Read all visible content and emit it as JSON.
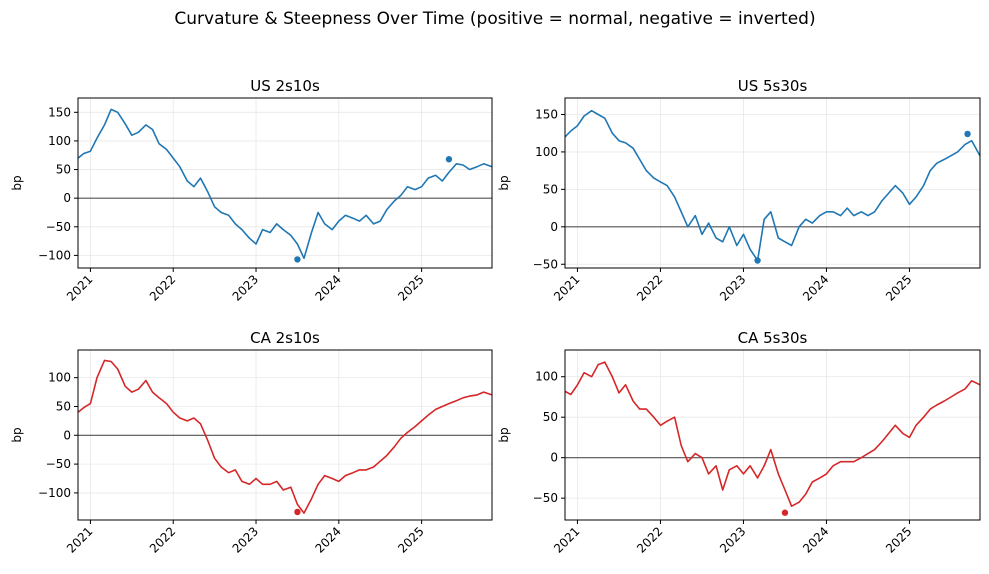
{
  "figure": {
    "title": "Curvature & Steepness Over Time (positive = normal, negative = inverted)"
  },
  "colors": {
    "us": "#1f77b4",
    "ca": "#d62728",
    "zero_line": "#555555",
    "grid": "#e8e8e8"
  },
  "chart_data": [
    {
      "type": "line",
      "title": "US 2s10s",
      "ylabel": "bp",
      "xlabel": "",
      "x_ticks": [
        "2021",
        "2022",
        "2023",
        "2024",
        "2025"
      ],
      "y_ticks": [
        150,
        100,
        50,
        0,
        -50,
        -100
      ],
      "xlim": [
        2020.85,
        2025.85
      ],
      "ylim": [
        -122,
        175
      ],
      "color": "us",
      "grid": true,
      "zero_line": true,
      "series": [
        {
          "x": [
            2020.85,
            2020.92,
            2021.0,
            2021.08,
            2021.17,
            2021.25,
            2021.33,
            2021.42,
            2021.5,
            2021.58,
            2021.67,
            2021.75,
            2021.83,
            2021.92,
            2022.0,
            2022.08,
            2022.17,
            2022.25,
            2022.33,
            2022.42,
            2022.5,
            2022.58,
            2022.67,
            2022.75,
            2022.83,
            2022.92,
            2023.0,
            2023.08,
            2023.17,
            2023.25,
            2023.33,
            2023.42,
            2023.5,
            2023.58,
            2023.67,
            2023.75,
            2023.83,
            2023.92,
            2024.0,
            2024.08,
            2024.17,
            2024.25,
            2024.33,
            2024.42,
            2024.5,
            2024.58,
            2024.67,
            2024.75,
            2024.83,
            2024.92,
            2025.0,
            2025.08,
            2025.17,
            2025.25,
            2025.33,
            2025.42,
            2025.5,
            2025.58,
            2025.67,
            2025.75,
            2025.85
          ],
          "y": [
            70,
            78,
            82,
            105,
            128,
            155,
            150,
            130,
            110,
            115,
            128,
            120,
            95,
            85,
            70,
            55,
            30,
            20,
            35,
            10,
            -15,
            -25,
            -30,
            -45,
            -55,
            -70,
            -80,
            -55,
            -60,
            -45,
            -55,
            -65,
            -80,
            -105,
            -60,
            -25,
            -45,
            -55,
            -40,
            -30,
            -35,
            -40,
            -30,
            -45,
            -40,
            -20,
            -5,
            5,
            20,
            15,
            20,
            35,
            40,
            30,
            45,
            60,
            58,
            50,
            55,
            60,
            55
          ]
        }
      ],
      "markers": [
        {
          "x": 2023.5,
          "y": -107
        },
        {
          "x": 2025.33,
          "y": 68
        }
      ]
    },
    {
      "type": "line",
      "title": "US 5s30s",
      "ylabel": "bp",
      "xlabel": "",
      "x_ticks": [
        "2021",
        "2022",
        "2023",
        "2024",
        "2025"
      ],
      "y_ticks": [
        150,
        100,
        50,
        0,
        -50
      ],
      "xlim": [
        2020.85,
        2025.85
      ],
      "ylim": [
        -55,
        172
      ],
      "color": "us",
      "grid": true,
      "zero_line": true,
      "series": [
        {
          "x": [
            2020.85,
            2020.92,
            2021.0,
            2021.08,
            2021.17,
            2021.25,
            2021.33,
            2021.42,
            2021.5,
            2021.58,
            2021.67,
            2021.75,
            2021.83,
            2021.92,
            2022.0,
            2022.08,
            2022.17,
            2022.25,
            2022.33,
            2022.42,
            2022.5,
            2022.58,
            2022.67,
            2022.75,
            2022.83,
            2022.92,
            2023.0,
            2023.08,
            2023.17,
            2023.25,
            2023.33,
            2023.42,
            2023.5,
            2023.58,
            2023.67,
            2023.75,
            2023.83,
            2023.92,
            2024.0,
            2024.08,
            2024.17,
            2024.25,
            2024.33,
            2024.42,
            2024.5,
            2024.58,
            2024.67,
            2024.75,
            2024.83,
            2024.92,
            2025.0,
            2025.08,
            2025.17,
            2025.25,
            2025.33,
            2025.42,
            2025.5,
            2025.58,
            2025.67,
            2025.75,
            2025.85
          ],
          "y": [
            120,
            128,
            135,
            148,
            155,
            150,
            145,
            125,
            115,
            112,
            105,
            90,
            75,
            65,
            60,
            55,
            40,
            20,
            0,
            15,
            -10,
            5,
            -15,
            -20,
            0,
            -25,
            -10,
            -30,
            -45,
            10,
            20,
            -15,
            -20,
            -25,
            0,
            10,
            5,
            15,
            20,
            20,
            15,
            25,
            15,
            20,
            15,
            20,
            35,
            45,
            55,
            45,
            30,
            40,
            55,
            75,
            85,
            90,
            95,
            100,
            110,
            115,
            95
          ]
        }
      ],
      "markers": [
        {
          "x": 2023.17,
          "y": -45
        },
        {
          "x": 2025.7,
          "y": 124
        }
      ]
    },
    {
      "type": "line",
      "title": "CA 2s10s",
      "ylabel": "bp",
      "xlabel": "",
      "x_ticks": [
        "2021",
        "2022",
        "2023",
        "2024",
        "2025"
      ],
      "y_ticks": [
        100,
        50,
        0,
        -50,
        -100
      ],
      "xlim": [
        2020.85,
        2025.85
      ],
      "ylim": [
        -147,
        148
      ],
      "color": "ca",
      "grid": true,
      "zero_line": true,
      "series": [
        {
          "x": [
            2020.85,
            2020.92,
            2021.0,
            2021.08,
            2021.17,
            2021.25,
            2021.33,
            2021.42,
            2021.5,
            2021.58,
            2021.67,
            2021.75,
            2021.83,
            2021.92,
            2022.0,
            2022.08,
            2022.17,
            2022.25,
            2022.33,
            2022.42,
            2022.5,
            2022.58,
            2022.67,
            2022.75,
            2022.83,
            2022.92,
            2023.0,
            2023.08,
            2023.17,
            2023.25,
            2023.33,
            2023.42,
            2023.5,
            2023.58,
            2023.67,
            2023.75,
            2023.83,
            2023.92,
            2024.0,
            2024.08,
            2024.17,
            2024.25,
            2024.33,
            2024.42,
            2024.5,
            2024.58,
            2024.67,
            2024.75,
            2024.83,
            2024.92,
            2025.0,
            2025.08,
            2025.17,
            2025.25,
            2025.33,
            2025.42,
            2025.5,
            2025.58,
            2025.67,
            2025.75,
            2025.85
          ],
          "y": [
            40,
            48,
            55,
            100,
            130,
            128,
            115,
            85,
            75,
            80,
            95,
            75,
            65,
            55,
            40,
            30,
            25,
            30,
            20,
            -10,
            -40,
            -55,
            -65,
            -60,
            -80,
            -85,
            -75,
            -85,
            -85,
            -80,
            -95,
            -90,
            -120,
            -135,
            -110,
            -85,
            -70,
            -75,
            -80,
            -70,
            -65,
            -60,
            -60,
            -55,
            -45,
            -35,
            -20,
            -5,
            5,
            15,
            25,
            35,
            45,
            50,
            55,
            60,
            65,
            68,
            70,
            75,
            70
          ]
        }
      ],
      "markers": [
        {
          "x": 2023.5,
          "y": -133
        }
      ]
    },
    {
      "type": "line",
      "title": "CA 5s30s",
      "ylabel": "bp",
      "xlabel": "",
      "x_ticks": [
        "2021",
        "2022",
        "2023",
        "2024",
        "2025"
      ],
      "y_ticks": [
        100,
        50,
        0,
        -50
      ],
      "xlim": [
        2020.85,
        2025.85
      ],
      "ylim": [
        -77,
        133
      ],
      "color": "ca",
      "grid": true,
      "zero_line": true,
      "series": [
        {
          "x": [
            2020.85,
            2020.92,
            2021.0,
            2021.08,
            2021.17,
            2021.25,
            2021.33,
            2021.42,
            2021.5,
            2021.58,
            2021.67,
            2021.75,
            2021.83,
            2021.92,
            2022.0,
            2022.08,
            2022.17,
            2022.25,
            2022.33,
            2022.42,
            2022.5,
            2022.58,
            2022.67,
            2022.75,
            2022.83,
            2022.92,
            2023.0,
            2023.08,
            2023.17,
            2023.25,
            2023.33,
            2023.42,
            2023.5,
            2023.58,
            2023.67,
            2023.75,
            2023.83,
            2023.92,
            2024.0,
            2024.08,
            2024.17,
            2024.25,
            2024.33,
            2024.42,
            2024.5,
            2024.58,
            2024.67,
            2024.75,
            2024.83,
            2024.92,
            2025.0,
            2025.08,
            2025.17,
            2025.25,
            2025.33,
            2025.42,
            2025.5,
            2025.58,
            2025.67,
            2025.75,
            2025.85
          ],
          "y": [
            82,
            78,
            90,
            105,
            100,
            115,
            118,
            100,
            80,
            90,
            70,
            60,
            60,
            50,
            40,
            45,
            50,
            15,
            -5,
            5,
            0,
            -20,
            -10,
            -40,
            -15,
            -10,
            -20,
            -10,
            -25,
            -10,
            10,
            -20,
            -40,
            -60,
            -55,
            -45,
            -30,
            -25,
            -20,
            -10,
            -5,
            -5,
            -5,
            0,
            5,
            10,
            20,
            30,
            40,
            30,
            25,
            40,
            50,
            60,
            65,
            70,
            75,
            80,
            85,
            95,
            90
          ]
        }
      ],
      "markers": [
        {
          "x": 2023.5,
          "y": -68
        }
      ]
    }
  ]
}
